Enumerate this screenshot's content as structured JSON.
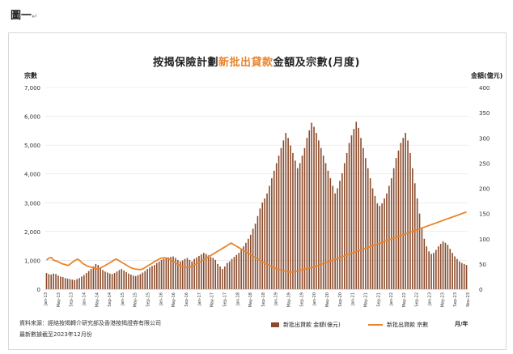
{
  "figure_label": "圖一",
  "figure_mark": "↵",
  "chart_data": {
    "type": "bar+line",
    "title_parts": [
      "按揭保險計劃",
      "新批出貸款",
      "金額及宗數(月度)"
    ],
    "ylabel_left": "宗數",
    "ylabel_right": "金額(億元)",
    "y_left_ticks": [
      "0",
      "1,000",
      "2,000",
      "3,000",
      "4,000",
      "5,000",
      "6,000",
      "7,000"
    ],
    "y_right_ticks": [
      "0",
      "50",
      "100",
      "150",
      "200",
      "250",
      "300",
      "350",
      "400"
    ],
    "ylim_left": [
      0,
      7000
    ],
    "ylim_right": [
      0,
      400
    ],
    "x_tick_labels": [
      "Jan-13",
      "May-13",
      "Sep-13",
      "Jan-14",
      "May-14",
      "Sep-14",
      "Jan-15",
      "May-15",
      "Sep-15",
      "Jan-16",
      "May-16",
      "Sep-16",
      "Jan-17",
      "May-17",
      "Sep-17",
      "Jan-18",
      "May-18",
      "Sep-18",
      "Jan-19",
      "May-19",
      "Sep-19",
      "Jan-20",
      "May-20",
      "Sep-20",
      "Jan-21",
      "May-21",
      "Sep-21",
      "Jan-22",
      "May-22",
      "Sep-22",
      "Jan-23",
      "May-23",
      "Sep-23",
      "Nov-23"
    ],
    "x_unit": "月/年",
    "grid": true,
    "series": [
      {
        "name": "新批出貸款 金額(億元)",
        "axis": "right",
        "color": "#8a4a2b",
        "kind": "bar",
        "values": [
          32,
          30,
          29,
          31,
          30,
          27,
          25,
          24,
          22,
          21,
          20,
          19,
          18,
          20,
          22,
          25,
          28,
          32,
          36,
          40,
          45,
          50,
          48,
          42,
          38,
          35,
          33,
          31,
          30,
          32,
          35,
          38,
          40,
          37,
          34,
          31,
          29,
          27,
          26,
          28,
          30,
          33,
          36,
          40,
          43,
          46,
          48,
          52,
          55,
          58,
          60,
          62,
          63,
          64,
          65,
          62,
          58,
          55,
          57,
          60,
          62,
          58,
          55,
          60,
          63,
          66,
          69,
          72,
          70,
          67,
          64,
          62,
          58,
          50,
          45,
          40,
          45,
          52,
          55,
          60,
          64,
          68,
          72,
          78,
          85,
          92,
          100,
          108,
          120,
          130,
          145,
          160,
          172,
          180,
          190,
          205,
          220,
          235,
          250,
          265,
          280,
          295,
          310,
          300,
          285,
          270,
          255,
          240,
          250,
          265,
          280,
          300,
          315,
          330,
          322,
          310,
          295,
          280,
          265,
          250,
          235,
          220,
          205,
          190,
          200,
          215,
          230,
          250,
          270,
          290,
          305,
          318,
          332,
          320,
          300,
          280,
          260,
          240,
          220,
          200,
          185,
          170,
          165,
          170,
          180,
          190,
          205,
          220,
          240,
          260,
          275,
          290,
          300,
          310,
          295,
          270,
          240,
          210,
          180,
          150,
          120,
          100,
          85,
          75,
          70,
          72,
          78,
          85,
          90,
          95,
          92,
          88,
          80,
          72,
          65,
          60,
          55,
          52,
          50,
          48
        ]
      },
      {
        "name": "新批出貸款 宗數",
        "axis": "left",
        "color": "#e9842b",
        "kind": "line",
        "values": [
          1010,
          1080,
          1099,
          1005,
          980,
          950,
          900,
          870,
          850,
          820,
          880,
          950,
          1000,
          1045,
          980,
          900,
          850,
          800,
          780,
          750,
          720,
          700,
          720,
          760,
          800,
          850,
          900,
          950,
          1000,
          1050,
          1000,
          950,
          900,
          850,
          800,
          750,
          720,
          700,
          690,
          680,
          700,
          750,
          800,
          850,
          900,
          960,
          1000,
          1050,
          1080,
          1090,
          1080,
          1050,
          1000,
          950,
          900,
          850,
          800,
          780,
          760,
          750,
          780,
          820,
          860,
          900,
          950,
          1000,
          1050,
          1100,
          1150,
          1200,
          1250,
          1300,
          1350,
          1400,
          1450,
          1500,
          1555,
          1600,
          1550,
          1500,
          1450,
          1400,
          1350,
          1300,
          1250,
          1200,
          1150,
          1100,
          1050,
          1000,
          950,
          900,
          860,
          820,
          780,
          740,
          700,
          680,
          660,
          640,
          620,
          600,
          590,
          600,
          620,
          640,
          660,
          680,
          700,
          720,
          740,
          760,
          790,
          820,
          850,
          880,
          910,
          940,
          970,
          1000,
          1030,
          1060,
          1090,
          1120,
          1150,
          1180,
          1210,
          1240,
          1270,
          1300,
          1330,
          1360,
          1390,
          1420,
          1450,
          1480,
          1510,
          1540,
          1570,
          1600,
          1630,
          1660,
          1690,
          1720,
          1750,
          1780,
          1810,
          1840,
          1870,
          1900,
          1930,
          1960,
          1990,
          2020,
          2050,
          2080,
          2110,
          2140,
          2170,
          2200,
          2230,
          2260,
          2290,
          2320,
          2350,
          2380,
          2410,
          2440,
          2470,
          2500,
          2530,
          2560,
          2590,
          2620,
          2650,
          2680
        ]
      }
    ]
  },
  "footer": {
    "source": "資料來源：經絡按揭轉介研究部及香港按揭證券有限公司",
    "updated": "最新數據截至2023年12月份"
  }
}
